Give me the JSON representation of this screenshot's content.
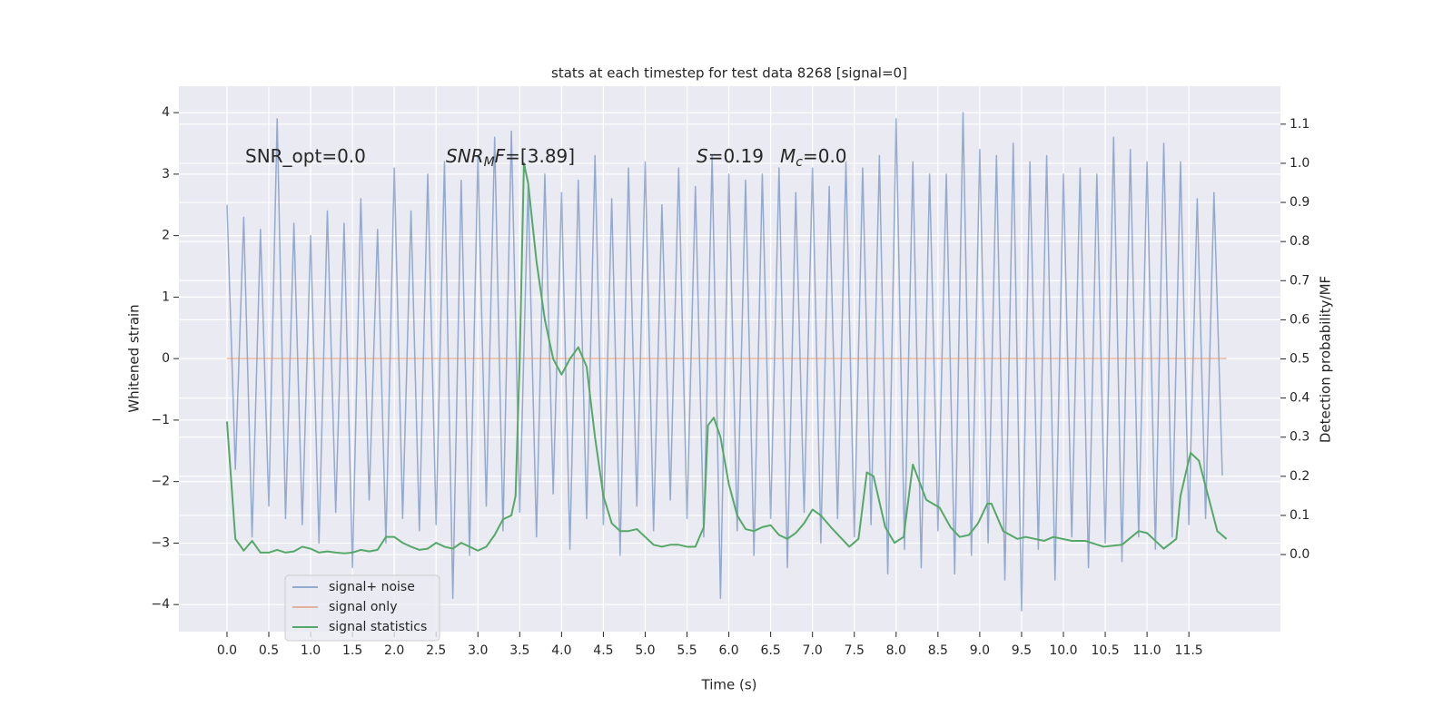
{
  "chart_data": {
    "type": "line",
    "title": "stats at each timestep for test data 8268 [signal=0]",
    "xlabel": "Time (s)",
    "ylabel": "Whitened strain",
    "y2label": "Detection probability/MF",
    "annotations": [
      [
        {
          "text": "SNR_opt=0.0"
        }
      ],
      [
        {
          "text": "SNR",
          "italic": true
        },
        {
          "text": "M",
          "italic": true,
          "sub": true
        },
        {
          "text": "F",
          "italic": true
        },
        {
          "text": "=[3.89]"
        }
      ],
      [
        {
          "text": "S",
          "italic": true
        },
        {
          "text": "=0.19"
        }
      ],
      [
        {
          "text": "M",
          "italic": true
        },
        {
          "text": "c",
          "italic": true,
          "sub": true
        },
        {
          "text": "=0.0"
        }
      ]
    ],
    "xlim": [
      -0.575,
      12.595
    ],
    "ylim": [
      -4.44,
      4.43
    ],
    "y2lim": [
      -0.197,
      1.197
    ],
    "xticks": [
      {
        "value": 0,
        "label": "0.0"
      },
      0.5,
      {
        "value": 1,
        "label": "1.0"
      },
      1.5,
      {
        "value": 2,
        "label": "2.0"
      },
      2.5,
      {
        "value": 3,
        "label": "3.0"
      },
      3.5,
      {
        "value": 4,
        "label": "4.0"
      },
      4.5,
      {
        "value": 5,
        "label": "5.0"
      },
      5.5,
      {
        "value": 6,
        "label": "6.0"
      },
      6.5,
      {
        "value": 7,
        "label": "7.0"
      },
      7.5,
      {
        "value": 8,
        "label": "8.0"
      },
      8.5,
      {
        "value": 9,
        "label": "9.0"
      },
      9.5,
      {
        "value": 10,
        "label": "10.0"
      },
      10.5,
      {
        "value": 11,
        "label": "11.0"
      },
      11.5
    ],
    "yticks": [
      {
        "value": -4,
        "label": "−4"
      },
      {
        "value": -3,
        "label": "−3"
      },
      {
        "value": -2,
        "label": "−2"
      },
      {
        "value": -1,
        "label": "−1"
      },
      0,
      1,
      2,
      3,
      4
    ],
    "y2ticks": [
      {
        "value": 0,
        "label": "0.0"
      },
      0.1,
      0.2,
      0.3,
      0.4,
      0.5,
      0.6,
      0.7,
      0.8,
      0.9,
      {
        "value": 1,
        "label": "1.0"
      },
      1.1
    ],
    "grid": true,
    "legend": "lower left",
    "series": [
      {
        "name": "signal+ noise",
        "color": "#4c72b0",
        "axis": "y",
        "x": [
          0.0,
          0.1,
          0.2,
          0.3,
          0.4,
          0.5,
          0.6,
          0.7,
          0.8,
          0.9,
          1.0,
          1.1,
          1.2,
          1.3,
          1.4,
          1.5,
          1.6,
          1.7,
          1.8,
          1.9,
          2.0,
          2.1,
          2.2,
          2.3,
          2.4,
          2.5,
          2.6,
          2.7,
          2.8,
          2.9,
          3.0,
          3.1,
          3.2,
          3.3,
          3.4,
          3.5,
          3.6,
          3.7,
          3.8,
          3.9,
          4.0,
          4.1,
          4.2,
          4.3,
          4.4,
          4.5,
          4.6,
          4.7,
          4.8,
          4.9,
          5.0,
          5.1,
          5.2,
          5.3,
          5.4,
          5.5,
          5.6,
          5.7,
          5.8,
          5.9,
          6.0,
          6.1,
          6.2,
          6.3,
          6.4,
          6.5,
          6.6,
          6.7,
          6.8,
          6.9,
          7.0,
          7.1,
          7.2,
          7.3,
          7.4,
          7.5,
          7.6,
          7.7,
          7.8,
          7.9,
          8.0,
          8.1,
          8.2,
          8.3,
          8.4,
          8.5,
          8.6,
          8.7,
          8.8,
          8.9,
          9.0,
          9.1,
          9.2,
          9.3,
          9.4,
          9.5,
          9.6,
          9.7,
          9.8,
          9.9,
          10.0,
          10.1,
          10.2,
          10.3,
          10.4,
          10.5,
          10.6,
          10.7,
          10.8,
          10.9,
          11.0,
          11.1,
          11.2,
          11.3,
          11.4,
          11.5,
          11.6,
          11.7,
          11.8,
          11.9
        ],
        "values": [
          2.5,
          -1.8,
          2.3,
          -2.9,
          2.1,
          -2.4,
          3.9,
          -2.6,
          2.2,
          -2.7,
          2.0,
          -3.0,
          2.4,
          -2.5,
          2.2,
          -3.4,
          2.6,
          -2.3,
          2.1,
          -3.0,
          3.1,
          -2.6,
          2.4,
          -2.8,
          3.0,
          -2.7,
          3.2,
          -3.9,
          2.9,
          -3.2,
          3.3,
          -2.4,
          3.6,
          -2.8,
          3.7,
          -2.5,
          2.8,
          -2.9,
          3.0,
          -2.2,
          2.7,
          -3.1,
          2.9,
          -2.6,
          3.3,
          -2.7,
          2.6,
          -3.2,
          3.1,
          -2.4,
          3.2,
          -2.8,
          2.5,
          -2.3,
          3.1,
          -2.6,
          2.8,
          -2.9,
          3.3,
          -3.9,
          3.0,
          -2.8,
          2.9,
          -3.2,
          3.0,
          -2.6,
          3.1,
          -3.4,
          2.7,
          -2.5,
          3.1,
          -3.0,
          2.8,
          -2.6,
          3.2,
          -2.9,
          3.1,
          -2.7,
          3.3,
          -3.5,
          3.9,
          -3.1,
          3.2,
          -3.4,
          3.0,
          -2.8,
          3.0,
          -3.5,
          4.0,
          -3.2,
          3.4,
          -3.0,
          3.3,
          -3.6,
          3.5,
          -4.1,
          3.2,
          -3.1,
          3.3,
          -3.6,
          3.0,
          -2.9,
          3.1,
          -3.4,
          3.0,
          -3.0,
          3.6,
          -3.3,
          3.4,
          -2.9,
          3.2,
          -3.1,
          3.5,
          -2.9,
          3.2,
          -2.7,
          2.6,
          -2.6,
          2.7,
          -1.9
        ]
      },
      {
        "name": "signal only",
        "color": "#dd8452",
        "axis": "y",
        "x": [
          0.0,
          11.95
        ],
        "values": [
          0,
          0
        ]
      },
      {
        "name": "signal statistics",
        "color": "#55a868",
        "axis": "y2",
        "x": [
          0.0,
          0.1,
          0.2,
          0.3,
          0.4,
          0.5,
          0.6,
          0.7,
          0.8,
          0.9,
          1.0,
          1.1,
          1.2,
          1.3,
          1.4,
          1.5,
          1.6,
          1.7,
          1.8,
          1.9,
          2.0,
          2.1,
          2.2,
          2.3,
          2.4,
          2.5,
          2.6,
          2.7,
          2.8,
          2.9,
          3.0,
          3.1,
          3.2,
          3.3,
          3.4,
          3.45,
          3.5,
          3.55,
          3.6,
          3.7,
          3.8,
          3.9,
          4.0,
          4.1,
          4.2,
          4.3,
          4.4,
          4.5,
          4.6,
          4.7,
          4.8,
          4.9,
          5.0,
          5.1,
          5.2,
          5.3,
          5.4,
          5.5,
          5.6,
          5.7,
          5.75,
          5.82,
          5.9,
          6.0,
          6.1,
          6.2,
          6.3,
          6.4,
          6.5,
          6.6,
          6.7,
          6.8,
          6.9,
          7.0,
          7.1,
          7.22,
          7.44,
          7.55,
          7.65,
          7.73,
          7.87,
          7.98,
          8.09,
          8.2,
          8.36,
          8.52,
          8.65,
          8.76,
          8.87,
          8.98,
          9.09,
          9.14,
          9.28,
          9.45,
          9.55,
          9.77,
          9.88,
          10.1,
          10.26,
          10.48,
          10.7,
          10.9,
          11.0,
          11.2,
          11.35,
          11.4,
          11.52,
          11.62,
          11.73,
          11.84,
          11.95
        ],
        "values": [
          0.34,
          0.04,
          0.01,
          0.035,
          0.005,
          0.005,
          0.012,
          0.005,
          0.008,
          0.02,
          0.015,
          0.005,
          0.008,
          0.005,
          0.003,
          0.005,
          0.012,
          0.008,
          0.012,
          0.045,
          0.045,
          0.03,
          0.02,
          0.012,
          0.015,
          0.03,
          0.02,
          0.015,
          0.03,
          0.02,
          0.01,
          0.02,
          0.05,
          0.09,
          0.1,
          0.15,
          0.5,
          1.0,
          0.95,
          0.75,
          0.6,
          0.5,
          0.46,
          0.5,
          0.53,
          0.48,
          0.3,
          0.15,
          0.08,
          0.06,
          0.06,
          0.065,
          0.045,
          0.025,
          0.02,
          0.025,
          0.025,
          0.02,
          0.02,
          0.07,
          0.33,
          0.35,
          0.3,
          0.18,
          0.1,
          0.065,
          0.06,
          0.07,
          0.075,
          0.05,
          0.04,
          0.055,
          0.08,
          0.115,
          0.1,
          0.07,
          0.02,
          0.04,
          0.21,
          0.2,
          0.07,
          0.03,
          0.045,
          0.23,
          0.14,
          0.12,
          0.07,
          0.045,
          0.05,
          0.08,
          0.13,
          0.13,
          0.06,
          0.04,
          0.045,
          0.035,
          0.045,
          0.035,
          0.035,
          0.02,
          0.025,
          0.06,
          0.055,
          0.015,
          0.04,
          0.15,
          0.26,
          0.24,
          0.15,
          0.06,
          0.04
        ]
      }
    ]
  }
}
